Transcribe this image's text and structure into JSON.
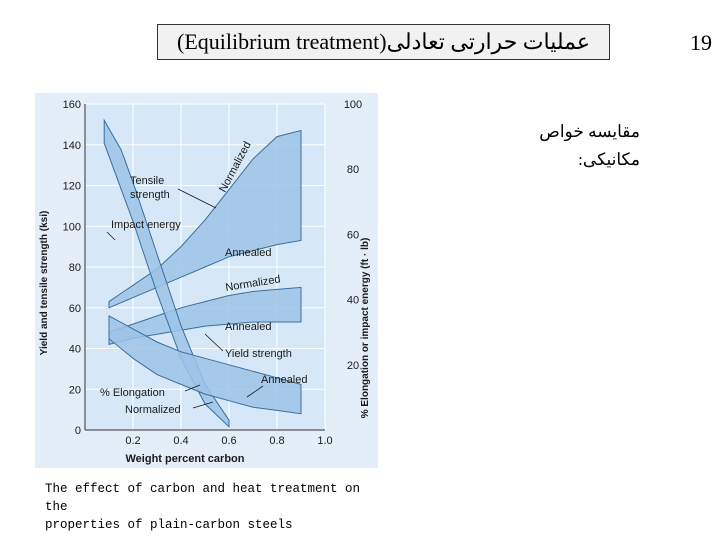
{
  "slide": {
    "title": "(Equilibrium treatment)عملیات حرارتی تعادلی",
    "page_number": "19",
    "side_text_line1": "مقایسه خواص",
    "side_text_line2": "مکانیکی:",
    "caption_line1": "The effect of carbon and heat treatment on the",
    "caption_line2": "properties of plain-carbon steels"
  },
  "colors": {
    "plot_background": "#d6e8f7",
    "band_fill": "#9ec3e6",
    "band_edge": "#3a6f9e",
    "grid": "#ffffff",
    "text": "#1a1a1a"
  },
  "chart_data": {
    "type": "area",
    "title": "",
    "xlabel": "Weight percent carbon",
    "ylabel_left": "Yield and tensile strength (ksi)",
    "ylabel_right": "% Elongation or impact energy (ft · lb)",
    "xlim": [
      0,
      1.0
    ],
    "ylim_left": [
      0,
      160
    ],
    "ylim_right": [
      0,
      100
    ],
    "x_ticks": [
      "0.2",
      "0.4",
      "0.6",
      "0.8",
      "1.0"
    ],
    "x_tick_values": [
      0.2,
      0.4,
      0.6,
      0.8,
      1.0
    ],
    "y_left_ticks": [
      0,
      20,
      40,
      60,
      80,
      100,
      120,
      140,
      160
    ],
    "y_right_ticks": [
      20,
      40,
      60,
      80,
      100
    ],
    "grid": true,
    "series": [
      {
        "name": "Tensile strength",
        "x": [
          0.1,
          0.2,
          0.3,
          0.4,
          0.5,
          0.6,
          0.7,
          0.8,
          0.9
        ],
        "lower_ksi": [
          60,
          65,
          70,
          75,
          80,
          85,
          88,
          91,
          93
        ],
        "upper_ksi": [
          63,
          71,
          79,
          90,
          103,
          118,
          133,
          144,
          147
        ]
      },
      {
        "name": "Yield strength",
        "x": [
          0.1,
          0.2,
          0.3,
          0.4,
          0.5,
          0.6,
          0.7,
          0.8,
          0.9
        ],
        "lower_ksi": [
          42,
          45,
          47,
          49,
          51,
          52,
          53,
          53,
          53
        ],
        "upper_ksi": [
          48,
          52,
          56,
          60,
          63,
          66,
          68,
          69,
          70
        ]
      },
      {
        "name": "Impact energy",
        "x": [
          0.08,
          0.15,
          0.2,
          0.3,
          0.4,
          0.5,
          0.6
        ],
        "lower_ftlb": [
          88,
          74,
          64,
          42,
          22,
          8,
          1
        ],
        "upper_ftlb": [
          95,
          86,
          76,
          54,
          32,
          14,
          3
        ]
      },
      {
        "name": "% Elongation",
        "x": [
          0.1,
          0.2,
          0.3,
          0.4,
          0.5,
          0.6,
          0.7,
          0.8,
          0.9
        ],
        "lower_pct": [
          28,
          22,
          17,
          14,
          11,
          9,
          7,
          6,
          5
        ],
        "upper_pct": [
          35,
          31,
          27,
          24,
          22,
          20,
          18,
          16,
          14
        ]
      }
    ],
    "annotations": [
      "Tensile strength",
      "Normalized",
      "Impact energy",
      "Annealed",
      "Normalized",
      "Annealed",
      "Yield strength",
      "Annealed",
      "% Elongation",
      "Normalized"
    ]
  }
}
